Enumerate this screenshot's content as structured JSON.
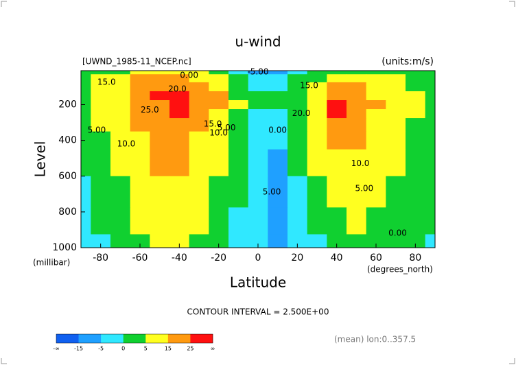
{
  "chart_data": {
    "type": "contour",
    "title": "u-wind",
    "subtitle": "[UWND_1985-11_NCEP.nc]",
    "units_label": "(units:m/s)",
    "x_label": "Latitude",
    "x_unit": "(degrees_north)",
    "y_label": "Level",
    "y_unit": "(millibar)",
    "xlim": [
      -90,
      90
    ],
    "xticks": [
      -80,
      -60,
      -40,
      -20,
      0,
      20,
      40,
      60,
      80
    ],
    "ylim": [
      1000,
      10
    ],
    "yticks": [
      200,
      400,
      600,
      800,
      1000
    ],
    "x": [
      -90,
      -80,
      -70,
      -60,
      -50,
      -40,
      -30,
      -20,
      -10,
      0,
      10,
      20,
      30,
      40,
      50,
      60,
      70,
      80,
      90
    ],
    "levels": [
      10,
      50,
      100,
      150,
      200,
      250,
      300,
      400,
      500,
      700,
      850,
      1000
    ],
    "z": [
      [
        0,
        2,
        4,
        6,
        8,
        8,
        6,
        2,
        -2,
        -6,
        -6,
        -2,
        0,
        2,
        4,
        4,
        3,
        2,
        1
      ],
      [
        2,
        5,
        10,
        15,
        18,
        18,
        14,
        6,
        0,
        -4,
        -3,
        0,
        4,
        10,
        12,
        10,
        6,
        4,
        2
      ],
      [
        3,
        6,
        12,
        18,
        24,
        24,
        18,
        8,
        2,
        -2,
        -1,
        2,
        8,
        16,
        16,
        12,
        7,
        4,
        2
      ],
      [
        3,
        6,
        12,
        18,
        25,
        26,
        22,
        16,
        4,
        0,
        1,
        4,
        12,
        24,
        22,
        14,
        8,
        5,
        3
      ],
      [
        3,
        6,
        12,
        18,
        24,
        27,
        24,
        20,
        6,
        0,
        0,
        4,
        14,
        27,
        24,
        15,
        9,
        5,
        3
      ],
      [
        3,
        6,
        11,
        17,
        23,
        26,
        22,
        14,
        4,
        -1,
        -1,
        3,
        12,
        25,
        22,
        14,
        8,
        5,
        3
      ],
      [
        2,
        5,
        10,
        15,
        21,
        24,
        19,
        10,
        3,
        -2,
        -2,
        2,
        10,
        22,
        20,
        13,
        7,
        4,
        2
      ],
      [
        2,
        4,
        8,
        13,
        18,
        20,
        14,
        7,
        2,
        -3,
        -2,
        1,
        7,
        17,
        17,
        11,
        6,
        4,
        2
      ],
      [
        1,
        3,
        6,
        11,
        15,
        17,
        11,
        5,
        1,
        -3,
        -6,
        0,
        5,
        13,
        14,
        9,
        5,
        3,
        1
      ],
      [
        -1,
        1,
        4,
        8,
        11,
        12,
        7,
        3,
        0,
        -4,
        -6,
        -2,
        2,
        7,
        9,
        6,
        4,
        2,
        1
      ],
      [
        -2,
        0,
        3,
        6,
        9,
        9,
        5,
        2,
        -1,
        -4,
        -6,
        -3,
        0,
        4,
        6,
        4,
        3,
        1,
        0
      ],
      [
        -2,
        -1,
        1,
        4,
        6,
        6,
        3,
        1,
        -1,
        -3,
        -6,
        -3,
        -1,
        2,
        3,
        2,
        1,
        0,
        -1
      ]
    ],
    "colorbar": {
      "bounds": [
        -15,
        -5,
        0,
        5,
        15,
        25
      ],
      "colors": [
        "#1060f0",
        "#1fa0ff",
        "#30e8ff",
        "#10d030",
        "#ffff20",
        "#ff9a10",
        "#ff1010"
      ],
      "low_label": "-∞",
      "high_label": "∞"
    },
    "contour_labels": [
      {
        "text": "25.0",
        "x": -55,
        "y": 230
      },
      {
        "text": "20.0",
        "x": -41,
        "y": 114
      },
      {
        "text": "15.0",
        "x": -77,
        "y": 75
      },
      {
        "text": "5.00",
        "x": -82,
        "y": 344
      },
      {
        "text": "10.0",
        "x": -67,
        "y": 420
      },
      {
        "text": "0.00",
        "x": -35,
        "y": 37
      },
      {
        "text": "15.0",
        "x": -23,
        "y": 310
      },
      {
        "text": "10.0",
        "x": -20,
        "y": 360
      },
      {
        "text": "5.00",
        "x": -16,
        "y": 330
      },
      {
        "text": "-5.00",
        "x": 0,
        "y": 18
      },
      {
        "text": "0.00",
        "x": 10,
        "y": 344
      },
      {
        "text": "5.00",
        "x": 7,
        "y": 690
      },
      {
        "text": "15.0",
        "x": 26,
        "y": 95
      },
      {
        "text": "20.0",
        "x": 22,
        "y": 249
      },
      {
        "text": "10.0",
        "x": 52,
        "y": 530
      },
      {
        "text": "5.00",
        "x": 54,
        "y": 670
      },
      {
        "text": "0.00",
        "x": 71,
        "y": 920
      }
    ],
    "footer": "CONTOUR INTERVAL = 2.500E+00",
    "note": "(mean) lon:0..357.5"
  }
}
